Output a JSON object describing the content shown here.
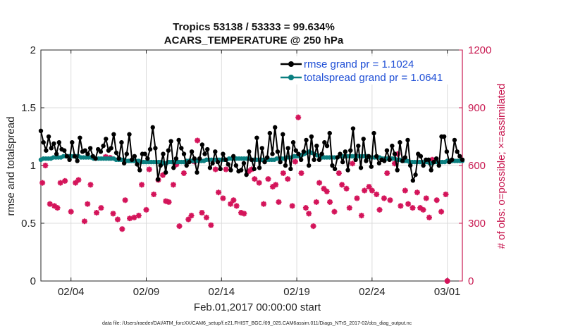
{
  "chart_data": {
    "type": "line",
    "title": "Tropics 53138 / 53333 = 99.634%",
    "subtitle": "ACARS_TEMPERATURE @ 250 hPa",
    "xlabel": "Feb.01,2017 00:00:00 start",
    "ylabel": "rmse and totalspread",
    "ylabel_right": "# of obs: o=possible; ×=assimilated",
    "footer": "data file: /Users/raeder/DAI/ATM_forcXX/CAM6_setup/f.e21.FHIST_BGC.f09_025.CAM6assim.011/Diags_NTrS_2017-02/obs_diag_output.nc",
    "xlim": [
      1,
      29
    ],
    "x_ticks": [
      3,
      8,
      13,
      18,
      23,
      28
    ],
    "x_tick_labels": [
      "02/04",
      "02/09",
      "02/14",
      "02/19",
      "02/24",
      "03/01"
    ],
    "ylim": [
      0,
      2
    ],
    "y_ticks": [
      0,
      0.5,
      1,
      1.5,
      2
    ],
    "y_tick_labels": [
      "0",
      "0.5",
      "1",
      "1.5",
      "2"
    ],
    "ylim_right": [
      0,
      1200
    ],
    "y_ticks_right": [
      0,
      300,
      600,
      900,
      1200
    ],
    "y_tick_labels_right": [
      "0",
      "300",
      "600",
      "900",
      "1200"
    ],
    "grid": true,
    "legend_position": "top-right",
    "colors": {
      "rmse": "#000000",
      "spread": "#0a7f80",
      "obs": "#d4145a",
      "axis_right": "#c8174f"
    },
    "series": [
      {
        "name": "rmse",
        "legend": "rmse grand pr = 1.1024",
        "axis": "left",
        "values": [
          1.3,
          1.2,
          1.13,
          1.25,
          1.15,
          1.19,
          1.1,
          1.2,
          1.14,
          1.13,
          1.08,
          1.05,
          1.2,
          1.08,
          1.04,
          1.24,
          1.12,
          1.13,
          1.1,
          1.15,
          1.08,
          1.06,
          1.14,
          1.12,
          1.17,
          1.23,
          1.13,
          1.15,
          1.27,
          1.11,
          1.06,
          1.2,
          1.02,
          1.1,
          1.27,
          1.05,
          1.08,
          1.01,
          0.96,
          1.1,
          1.1,
          1.06,
          1.14,
          1.33,
          1.15,
          0.88,
          1.0,
          1.1,
          0.94,
          1.13,
          1.21,
          0.98,
          1.06,
          1.22,
          1.15,
          1.1,
          1.0,
          1.03,
          1.12,
          1.06,
          0.94,
          1.06,
          1.18,
          1.1,
          1.14,
          0.98,
          1.02,
          1.12,
          1.03,
          0.97,
          1.1,
          1.05,
          1.01,
          0.96,
          1.08,
          1.0,
          0.95,
          0.96,
          1.02,
          0.92,
          1.12,
          1.05,
          0.97,
          1.24,
          0.98,
          1.15,
          1.03,
          1.07,
          1.28,
          1.1,
          1.33,
          1.12,
          1.03,
          1.27,
          1.0,
          1.15,
          0.97,
          1.2,
          1.13,
          1.1,
          1.05,
          1.12,
          1.22,
          1.0,
          1.25,
          1.05,
          1.17,
          1.05,
          1.1,
          1.2,
          1.17,
          1.28,
          1.0,
          0.97,
          1.07,
          1.1,
          1.03,
          1.12,
          0.96,
          1.13,
          1.32,
          1.05,
          1.17,
          0.98,
          1.23,
          1.04,
          1.08,
          0.99,
          1.28,
          1.08,
          1.02,
          1.05,
          1.04,
          1.13,
          1.05,
          1.17,
          1.1,
          0.96,
          1.2,
          1.04,
          1.07,
          1.22,
          1.0,
          0.87,
          0.92,
          1.1,
          1.08,
          1.0,
          1.05,
          1.05,
          0.96,
          1.03,
          1.06,
          1.0,
          1.25,
          1.25,
          1.12,
          1.03,
          1.05,
          1.22,
          1.12,
          1.08,
          1.05
        ]
      },
      {
        "name": "totalspread",
        "legend": "totalspread grand pr = 1.0641",
        "axis": "left",
        "values": [
          1.05,
          1.06,
          1.06,
          1.06,
          1.06,
          1.07,
          1.07,
          1.07,
          1.07,
          1.08,
          1.08,
          1.08,
          1.08,
          1.08,
          1.08,
          1.08,
          1.07,
          1.07,
          1.07,
          1.07,
          1.07,
          1.06,
          1.06,
          1.06,
          1.06,
          1.06,
          1.06,
          1.06,
          1.06,
          1.06,
          1.05,
          1.05,
          1.05,
          1.05,
          1.04,
          1.04,
          1.04,
          1.04,
          1.04,
          1.04,
          1.03,
          1.03,
          1.03,
          1.03,
          1.03,
          1.03,
          1.03,
          1.03,
          1.03,
          1.02,
          1.02,
          1.03,
          1.03,
          1.03,
          1.03,
          1.03,
          1.03,
          1.03,
          1.04,
          1.04,
          1.04,
          1.04,
          1.04,
          1.04,
          1.04,
          1.04,
          1.05,
          1.05,
          1.05,
          1.05,
          1.05,
          1.05,
          1.05,
          1.05,
          1.05,
          1.06,
          1.06,
          1.06,
          1.06,
          1.06,
          1.06,
          1.06,
          1.06,
          1.06,
          1.05,
          1.05,
          1.05,
          1.05,
          1.05,
          1.05,
          1.05,
          1.05,
          1.05,
          1.05,
          1.06,
          1.06,
          1.06,
          1.06,
          1.07,
          1.07,
          1.07,
          1.08,
          1.08,
          1.08,
          1.09,
          1.1,
          1.11,
          1.12,
          1.11,
          1.1,
          1.09,
          1.08,
          1.07,
          1.07,
          1.07,
          1.07,
          1.07,
          1.07,
          1.07,
          1.08,
          1.08,
          1.08,
          1.08,
          1.08,
          1.08,
          1.08,
          1.08,
          1.08,
          1.08,
          1.08,
          1.08,
          1.07,
          1.07,
          1.07,
          1.07,
          1.07,
          1.06,
          1.06,
          1.06,
          1.06,
          1.06,
          1.06,
          1.05,
          1.05,
          1.04,
          1.04,
          1.04,
          1.03,
          1.03,
          1.03,
          1.03,
          1.03,
          1.03,
          1.03,
          1.03,
          1.02,
          1.02,
          1.03,
          1.03,
          1.03,
          1.03,
          1.03,
          1.04,
          1.04,
          1.04,
          1.04,
          1.04,
          1.04,
          1.04
        ]
      },
      {
        "name": "obs assimilated",
        "axis": "right",
        "style": "markers",
        "points": [
          [
            1.1,
            510
          ],
          [
            1.3,
            600
          ],
          [
            1.6,
            400
          ],
          [
            1.9,
            390
          ],
          [
            2.1,
            380
          ],
          [
            2.3,
            510
          ],
          [
            2.6,
            520
          ],
          [
            3.0,
            360
          ],
          [
            3.3,
            510
          ],
          [
            3.5,
            525
          ],
          [
            3.9,
            310
          ],
          [
            4.1,
            400
          ],
          [
            4.3,
            500
          ],
          [
            4.7,
            355
          ],
          [
            5.0,
            380
          ],
          [
            5.3,
            645
          ],
          [
            5.6,
            640
          ],
          [
            5.8,
            350
          ],
          [
            6.1,
            320
          ],
          [
            6.4,
            270
          ],
          [
            6.6,
            420
          ],
          [
            6.9,
            325
          ],
          [
            7.2,
            330
          ],
          [
            7.5,
            340
          ],
          [
            7.7,
            500
          ],
          [
            8.0,
            370
          ],
          [
            8.2,
            580
          ],
          [
            8.5,
            450
          ],
          [
            8.8,
            525
          ],
          [
            9.1,
            550
          ],
          [
            9.3,
            415
          ],
          [
            9.5,
            410
          ],
          [
            9.8,
            500
          ],
          [
            10.0,
            605
          ],
          [
            10.2,
            285
          ],
          [
            10.5,
            560
          ],
          [
            10.8,
            320
          ],
          [
            11.0,
            340
          ],
          [
            11.2,
            620
          ],
          [
            11.4,
            730
          ],
          [
            11.7,
            355
          ],
          [
            12.0,
            330
          ],
          [
            12.3,
            290
          ],
          [
            12.6,
            580
          ],
          [
            12.8,
            460
          ],
          [
            13.1,
            430
          ],
          [
            13.3,
            580
          ],
          [
            13.6,
            400
          ],
          [
            13.8,
            420
          ],
          [
            14.0,
            390
          ],
          [
            14.3,
            355
          ],
          [
            14.5,
            350
          ],
          [
            14.8,
            570
          ],
          [
            15.0,
            580
          ],
          [
            15.2,
            530
          ],
          [
            15.5,
            510
          ],
          [
            15.8,
            400
          ],
          [
            16.1,
            530
          ],
          [
            16.4,
            490
          ],
          [
            16.6,
            500
          ],
          [
            16.8,
            410
          ],
          [
            17.1,
            560
          ],
          [
            17.4,
            530
          ],
          [
            17.7,
            390
          ],
          [
            17.9,
            620
          ],
          [
            18.1,
            850
          ],
          [
            18.3,
            560
          ],
          [
            18.6,
            380
          ],
          [
            18.8,
            350
          ],
          [
            19.1,
            285
          ],
          [
            19.3,
            410
          ],
          [
            19.5,
            510
          ],
          [
            19.8,
            480
          ],
          [
            20.0,
            465
          ],
          [
            20.2,
            410
          ],
          [
            20.5,
            360
          ],
          [
            20.8,
            560
          ],
          [
            21.0,
            500
          ],
          [
            21.3,
            480
          ],
          [
            21.5,
            380
          ],
          [
            21.7,
            610
          ],
          [
            22.0,
            430
          ],
          [
            22.3,
            340
          ],
          [
            22.5,
            470
          ],
          [
            22.8,
            490
          ],
          [
            23.0,
            470
          ],
          [
            23.3,
            450
          ],
          [
            23.5,
            370
          ],
          [
            23.8,
            430
          ],
          [
            24.0,
            560
          ],
          [
            24.2,
            420
          ],
          [
            24.5,
            610
          ],
          [
            24.7,
            660
          ],
          [
            24.9,
            390
          ],
          [
            25.2,
            470
          ],
          [
            25.4,
            400
          ],
          [
            25.7,
            380
          ],
          [
            26.0,
            460
          ],
          [
            26.2,
            380
          ],
          [
            26.4,
            370
          ],
          [
            26.6,
            430
          ],
          [
            26.8,
            330
          ],
          [
            27.0,
            630
          ],
          [
            27.3,
            420
          ],
          [
            27.6,
            360
          ],
          [
            27.9,
            450
          ]
        ]
      },
      {
        "name": "obs possible",
        "axis": "right",
        "style": "markers",
        "points": [
          [
            28.0,
            0
          ]
        ]
      }
    ]
  }
}
